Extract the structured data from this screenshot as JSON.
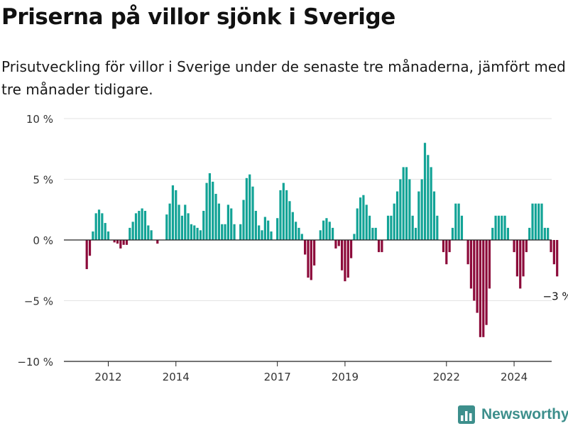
{
  "title": "Priserna på villor sjönk i Sverige",
  "subtitle": "Prisutveckling för villor i Sverige under de senaste tre månaderna, jämfört med tre månader tidigare.",
  "brand": {
    "name": "Newsworthy",
    "icon": "bar-chart-logo-icon"
  },
  "colors": {
    "positive": "#12a396",
    "negative": "#8c0a3a",
    "axis": "#222222",
    "grid": "#e3e3e3",
    "brand": "#3d8f8c"
  },
  "chart_data": {
    "type": "bar",
    "title": "Priserna på villor sjönk i Sverige",
    "subtitle": "Prisutveckling för villor i Sverige under de senaste tre månaderna, jämfört med tre månader tidigare.",
    "xlabel": "",
    "ylabel": "",
    "ylim": [
      -10,
      10
    ],
    "y_ticks": [
      {
        "value": 10,
        "label": "10 %"
      },
      {
        "value": 5,
        "label": "5 %"
      },
      {
        "value": 0,
        "label": "0 %"
      },
      {
        "value": -5,
        "label": "−5 %"
      },
      {
        "value": -10,
        "label": "−10 %"
      }
    ],
    "x_ticks": [
      {
        "month_index": 7,
        "label": "2012"
      },
      {
        "month_index": 29,
        "label": "2014"
      },
      {
        "month_index": 62,
        "label": "2017"
      },
      {
        "month_index": 84,
        "label": "2019"
      },
      {
        "month_index": 117,
        "label": "2022"
      },
      {
        "month_index": 139,
        "label": "2024"
      }
    ],
    "grid": true,
    "legend": "none",
    "annotation": {
      "month_index": 153,
      "value": -3,
      "text": "−3 %"
    },
    "values": [
      -2.4,
      -1.3,
      0.7,
      2.2,
      2.5,
      2.2,
      1.4,
      0.7,
      0,
      -0.2,
      -0.3,
      -0.7,
      -0.4,
      -0.4,
      1.0,
      1.5,
      2.2,
      2.4,
      2.6,
      2.4,
      1.2,
      0.8,
      0,
      -0.3,
      0,
      0,
      2.1,
      3.0,
      4.5,
      4.1,
      2.9,
      2.0,
      2.9,
      2.2,
      1.3,
      1.2,
      1.0,
      0.8,
      2.4,
      4.7,
      5.5,
      4.8,
      3.8,
      3.0,
      1.3,
      1.3,
      2.9,
      2.6,
      1.3,
      0,
      1.3,
      3.3,
      5.1,
      5.4,
      4.4,
      2.4,
      1.2,
      0.8,
      1.9,
      1.6,
      0.7,
      0,
      1.8,
      4.1,
      4.7,
      4.1,
      3.2,
      2.3,
      1.5,
      1.0,
      0.5,
      -1.2,
      -3.1,
      -3.3,
      -2.1,
      0,
      0.8,
      1.6,
      1.8,
      1.5,
      1.0,
      -0.7,
      -0.5,
      -2.5,
      -3.4,
      -3.1,
      -1.5,
      0.5,
      2.6,
      3.5,
      3.7,
      2.9,
      2.0,
      1.0,
      1.0,
      -1.0,
      -1.0,
      0,
      2.0,
      2.0,
      3.0,
      4.0,
      5.0,
      6.0,
      6.0,
      5.0,
      2.0,
      1.0,
      4.0,
      5.0,
      8.0,
      7.0,
      6.0,
      4.0,
      2.0,
      0,
      -1.0,
      -2.0,
      -1.0,
      1.0,
      3.0,
      3.0,
      2.0,
      0,
      -2.0,
      -4.0,
      -5.0,
      -6.0,
      -8.0,
      -8.0,
      -7.0,
      -4.0,
      1.0,
      2.0,
      2.0,
      2.0,
      2.0,
      1.0,
      0,
      -1.0,
      -3.0,
      -4.0,
      -3.0,
      -1.0,
      1.0,
      3.0,
      3.0,
      3.0,
      3.0,
      1.0,
      1.0,
      -1.0,
      -2.0,
      -3.0
    ]
  }
}
